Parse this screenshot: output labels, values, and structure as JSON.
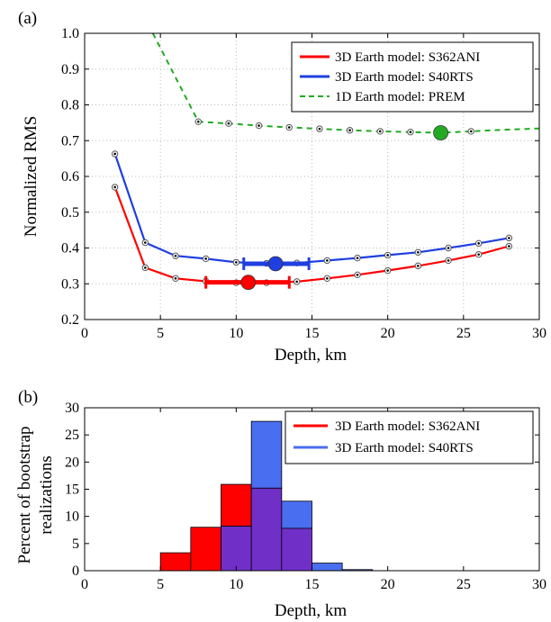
{
  "chart_data": [
    {
      "panel_label": "(a)",
      "type": "line",
      "xlabel": "Depth, km",
      "ylabel": "Normalized RMS",
      "xlim": [
        0,
        30
      ],
      "ylim": [
        0.2,
        1.0
      ],
      "xticks": [
        0,
        5,
        10,
        15,
        20,
        25,
        30
      ],
      "yticks": [
        0.2,
        0.3,
        0.4,
        0.5,
        0.6,
        0.7,
        0.8,
        0.9,
        1.0
      ],
      "ytick_labels": [
        "0.2",
        "0.3",
        "0.4",
        "0.5",
        "0.6",
        "0.7",
        "0.8",
        "0.9",
        "1.0"
      ],
      "grid": true,
      "legend_position": "top-right",
      "series": [
        {
          "name": "3D Earth model: S362ANI",
          "color": "#ff0000",
          "style": "solid",
          "x": [
            2,
            4,
            6,
            8,
            10,
            12,
            14,
            16,
            18,
            20,
            22,
            24,
            26,
            28
          ],
          "y": [
            0.57,
            0.345,
            0.315,
            0.307,
            0.303,
            0.303,
            0.306,
            0.315,
            0.325,
            0.337,
            0.35,
            0.365,
            0.382,
            0.405
          ],
          "best": {
            "x": 10.8,
            "y": 0.304,
            "err": [
              8.0,
              13.5
            ]
          }
        },
        {
          "name": "3D Earth model: S40RTS",
          "color": "#1f3fe0",
          "style": "solid",
          "x": [
            2,
            4,
            6,
            8,
            10,
            12,
            14,
            16,
            18,
            20,
            22,
            24,
            26,
            28
          ],
          "y": [
            0.663,
            0.415,
            0.378,
            0.37,
            0.36,
            0.357,
            0.358,
            0.365,
            0.372,
            0.38,
            0.388,
            0.4,
            0.413,
            0.428
          ],
          "best": {
            "x": 12.6,
            "y": 0.356,
            "err": [
              10.5,
              14.8
            ]
          }
        },
        {
          "name": "1D Earth model: PREM",
          "color": "#22aa22",
          "style": "dashed",
          "x": [
            4.5,
            7.5,
            9.5,
            11.5,
            13.5,
            15.5,
            17.5,
            19.5,
            21.5,
            23.5,
            25.5,
            27.5,
            30
          ],
          "y": [
            1.0,
            0.753,
            0.748,
            0.742,
            0.737,
            0.733,
            0.729,
            0.726,
            0.724,
            0.722,
            0.726,
            0.73,
            0.734
          ],
          "markers": [
            7.5,
            9.5,
            11.5,
            13.5,
            15.5,
            17.5,
            19.5,
            21.5,
            25.5
          ],
          "best": {
            "x": 23.5,
            "y": 0.722
          }
        }
      ]
    },
    {
      "panel_label": "(b)",
      "type": "bar",
      "xlabel": "Depth, km",
      "ylabel_lines": [
        "Percent of bootstrap",
        "realizations"
      ],
      "xlim": [
        0,
        30
      ],
      "ylim": [
        0,
        30
      ],
      "xticks": [
        0,
        5,
        10,
        15,
        20,
        25,
        30
      ],
      "yticks": [
        0,
        5,
        10,
        15,
        20,
        25,
        30
      ],
      "legend_position": "top-right",
      "bin_edges": [
        5,
        7,
        9,
        11,
        13,
        15,
        17,
        19
      ],
      "overlap_color": "#7030c8",
      "series": [
        {
          "name": "3D Earth model: S362ANI",
          "color": "#ff0000",
          "values": [
            3.3,
            8.0,
            15.9,
            15.2,
            7.8,
            0,
            0
          ]
        },
        {
          "name": "3D Earth model: S40RTS",
          "color": "#4a6ef0",
          "values": [
            0,
            0,
            8.2,
            27.5,
            12.8,
            1.4,
            0.2
          ]
        }
      ]
    }
  ]
}
